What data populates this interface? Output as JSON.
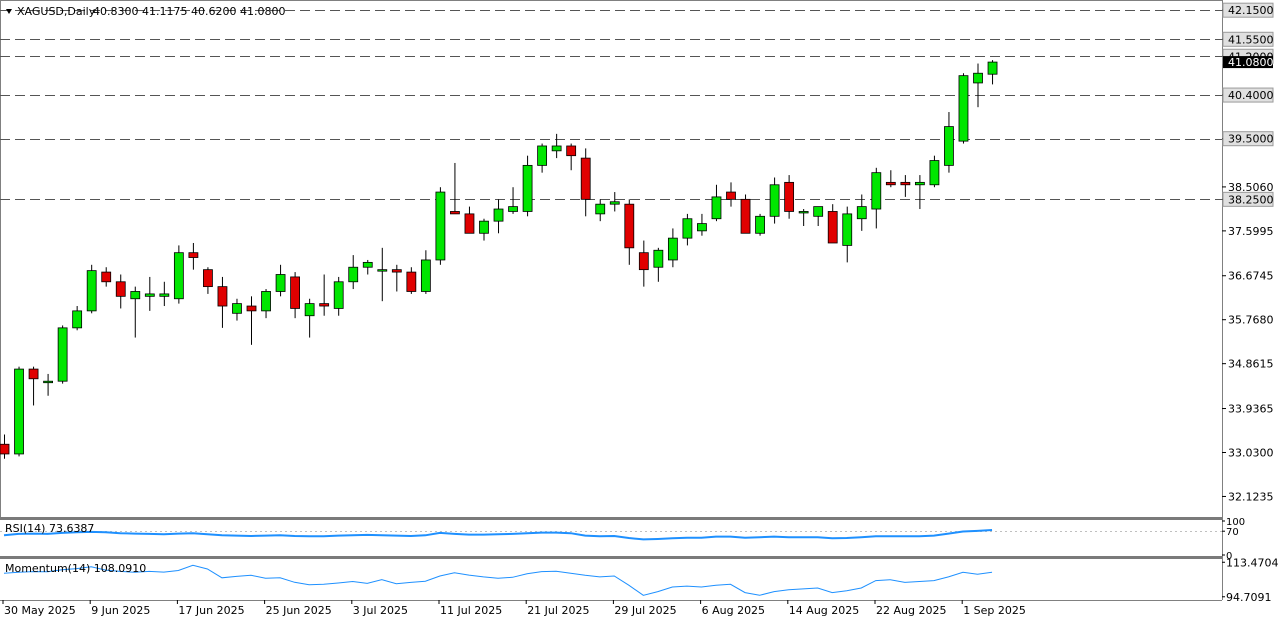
{
  "header": {
    "symbol_label": "XAGUSD,Daily",
    "ohlc_label": "40.8300 41.1175 40.6200 41.0800"
  },
  "colors": {
    "bull": "#00e600",
    "bear": "#e00000",
    "wick": "#000000",
    "indicator_line": "#1e90ff",
    "level_line": "#555555"
  },
  "chart_data": [
    {
      "type": "candlestick",
      "title": "XAGUSD,Daily",
      "ylim": [
        31.7,
        42.36
      ],
      "yticks": [
        "42.1500",
        "41.5500",
        "41.2000",
        "40.4000",
        "39.5000",
        "38.5060",
        "38.2500",
        "37.5995",
        "36.6745",
        "35.7680",
        "34.8615",
        "33.9365",
        "33.0300",
        "32.1235"
      ],
      "boxed_levels": [
        "42.1500",
        "41.5500",
        "41.2000",
        "40.4000",
        "39.5000",
        "38.2500"
      ],
      "dashed_levels": [
        42.15,
        41.55,
        41.2,
        40.4,
        39.5,
        38.25
      ],
      "current_price": 41.08,
      "current_price_label": "41.0800",
      "x_labels": [
        "30 May 2025",
        "9 Jun 2025",
        "17 Jun 2025",
        "25 Jun 2025",
        "3 Jul 2025",
        "11 Jul 2025",
        "21 Jul 2025",
        "29 Jul 2025",
        "6 Aug 2025",
        "14 Aug 2025",
        "22 Aug 2025",
        "1 Sep 2025"
      ],
      "ohlc": [
        [
          33.2,
          33.4,
          32.9,
          33.0
        ],
        [
          33.0,
          34.8,
          32.95,
          34.75
        ],
        [
          34.75,
          34.8,
          34.0,
          34.55
        ],
        [
          34.5,
          34.65,
          34.2,
          34.5
        ],
        [
          34.5,
          35.65,
          34.45,
          35.6
        ],
        [
          35.6,
          36.05,
          35.55,
          35.95
        ],
        [
          35.95,
          36.9,
          35.9,
          36.78
        ],
        [
          36.75,
          36.85,
          36.45,
          36.55
        ],
        [
          36.55,
          36.7,
          36.0,
          36.25
        ],
        [
          36.2,
          36.45,
          35.4,
          36.35
        ],
        [
          36.25,
          36.65,
          35.95,
          36.3
        ],
        [
          36.25,
          36.55,
          36.05,
          36.3
        ],
        [
          36.2,
          37.3,
          36.1,
          37.15
        ],
        [
          37.15,
          37.35,
          36.8,
          37.05
        ],
        [
          36.8,
          36.85,
          36.3,
          36.45
        ],
        [
          36.45,
          36.65,
          35.6,
          36.05
        ],
        [
          35.9,
          36.2,
          35.75,
          36.1
        ],
        [
          36.05,
          36.25,
          35.25,
          35.95
        ],
        [
          35.95,
          36.4,
          35.8,
          36.35
        ],
        [
          36.35,
          36.9,
          36.25,
          36.7
        ],
        [
          36.65,
          36.75,
          35.8,
          36.0
        ],
        [
          35.85,
          36.2,
          35.4,
          36.1
        ],
        [
          36.1,
          36.7,
          35.85,
          36.05
        ],
        [
          36.0,
          36.65,
          35.85,
          36.55
        ],
        [
          36.55,
          37.1,
          36.4,
          36.85
        ],
        [
          36.85,
          37.0,
          36.7,
          36.95
        ],
        [
          36.8,
          37.25,
          36.15,
          36.8
        ],
        [
          36.8,
          36.9,
          36.35,
          36.75
        ],
        [
          36.75,
          36.85,
          36.3,
          36.35
        ],
        [
          36.35,
          37.2,
          36.3,
          37.0
        ],
        [
          37.0,
          38.5,
          36.9,
          38.4
        ],
        [
          38.0,
          39.0,
          37.95,
          37.95
        ],
        [
          37.95,
          38.1,
          37.55,
          37.55
        ],
        [
          37.55,
          37.85,
          37.4,
          37.8
        ],
        [
          37.8,
          38.25,
          37.55,
          38.05
        ],
        [
          38.0,
          38.5,
          37.95,
          38.1
        ],
        [
          38.0,
          39.15,
          37.9,
          38.95
        ],
        [
          38.95,
          39.4,
          38.8,
          39.35
        ],
        [
          39.25,
          39.6,
          39.1,
          39.35
        ],
        [
          39.35,
          39.4,
          38.85,
          39.15
        ],
        [
          39.1,
          39.3,
          37.9,
          38.25
        ],
        [
          37.95,
          38.25,
          37.8,
          38.15
        ],
        [
          38.15,
          38.4,
          38.0,
          38.2
        ],
        [
          38.15,
          38.25,
          36.9,
          37.25
        ],
        [
          37.15,
          37.4,
          36.45,
          36.8
        ],
        [
          36.85,
          37.25,
          36.55,
          37.2
        ],
        [
          37.0,
          37.65,
          36.85,
          37.45
        ],
        [
          37.45,
          37.95,
          37.3,
          37.85
        ],
        [
          37.6,
          37.95,
          37.5,
          37.75
        ],
        [
          37.85,
          38.55,
          37.8,
          38.3
        ],
        [
          38.4,
          38.6,
          38.1,
          38.25
        ],
        [
          38.25,
          38.35,
          37.6,
          37.55
        ],
        [
          37.55,
          37.95,
          37.5,
          37.9
        ],
        [
          37.9,
          38.7,
          37.75,
          38.55
        ],
        [
          38.6,
          38.75,
          37.85,
          38.0
        ],
        [
          38.0,
          38.05,
          37.7,
          38.0
        ],
        [
          37.9,
          38.1,
          37.7,
          38.1
        ],
        [
          38.0,
          38.15,
          37.4,
          37.35
        ],
        [
          37.3,
          38.1,
          36.95,
          37.95
        ],
        [
          37.85,
          38.35,
          37.6,
          38.1
        ],
        [
          38.05,
          38.9,
          37.65,
          38.8
        ],
        [
          38.6,
          38.85,
          38.5,
          38.55
        ],
        [
          38.6,
          38.75,
          38.3,
          38.55
        ],
        [
          38.55,
          38.75,
          38.05,
          38.6
        ],
        [
          38.55,
          39.15,
          38.5,
          39.05
        ],
        [
          38.95,
          40.05,
          38.8,
          39.75
        ],
        [
          39.45,
          40.85,
          39.4,
          40.8
        ],
        [
          40.65,
          41.05,
          40.15,
          40.85
        ],
        [
          40.83,
          41.12,
          40.62,
          41.08
        ]
      ]
    },
    {
      "type": "line",
      "label": "RSI(14) 73.6387",
      "ylim": [
        0,
        100
      ],
      "yticks": [
        "100",
        "70",
        "0"
      ],
      "values": [
        58,
        62,
        63,
        62,
        65,
        67,
        68,
        67,
        64,
        63,
        62,
        61,
        63,
        64,
        61,
        58,
        57,
        56,
        57,
        58,
        56,
        55,
        55,
        57,
        58,
        59,
        58,
        57,
        56,
        58,
        65,
        62,
        60,
        60,
        61,
        62,
        64,
        66,
        66,
        64,
        57,
        55,
        56,
        50,
        46,
        47,
        49,
        51,
        51,
        54,
        54,
        51,
        52,
        54,
        52,
        52,
        52,
        49,
        50,
        52,
        55,
        55,
        55,
        55,
        57,
        63,
        69,
        71,
        73.64
      ]
    },
    {
      "type": "line",
      "label": "Momentum(14) 108.0910",
      "ylim": [
        93.5,
        114.7
      ],
      "yticks": [
        "113.4704",
        "94.7091"
      ],
      "values": [
        107.5,
        108.0,
        108.4,
        108.3,
        109.4,
        110.0,
        111.0,
        109.2,
        108.5,
        108.0,
        108.5,
        108.1,
        109.0,
        111.8,
        109.8,
        105.0,
        105.8,
        106.4,
        104.8,
        105.0,
        102.6,
        101.2,
        101.5,
        102.2,
        103.0,
        102.0,
        104.0,
        101.8,
        102.5,
        103.2,
        106.0,
        107.8,
        106.5,
        105.5,
        104.8,
        105.3,
        107.2,
        108.4,
        108.6,
        107.5,
        106.4,
        105.5,
        106.0,
        101.0,
        95.5,
        97.5,
        100.0,
        100.5,
        100.0,
        101.0,
        101.5,
        97.0,
        95.5,
        97.5,
        98.5,
        99.0,
        99.5,
        97.0,
        98.0,
        99.5,
        103.5,
        104.0,
        102.5,
        103.0,
        103.5,
        105.5,
        108.0,
        107.0,
        108.09
      ]
    }
  ]
}
